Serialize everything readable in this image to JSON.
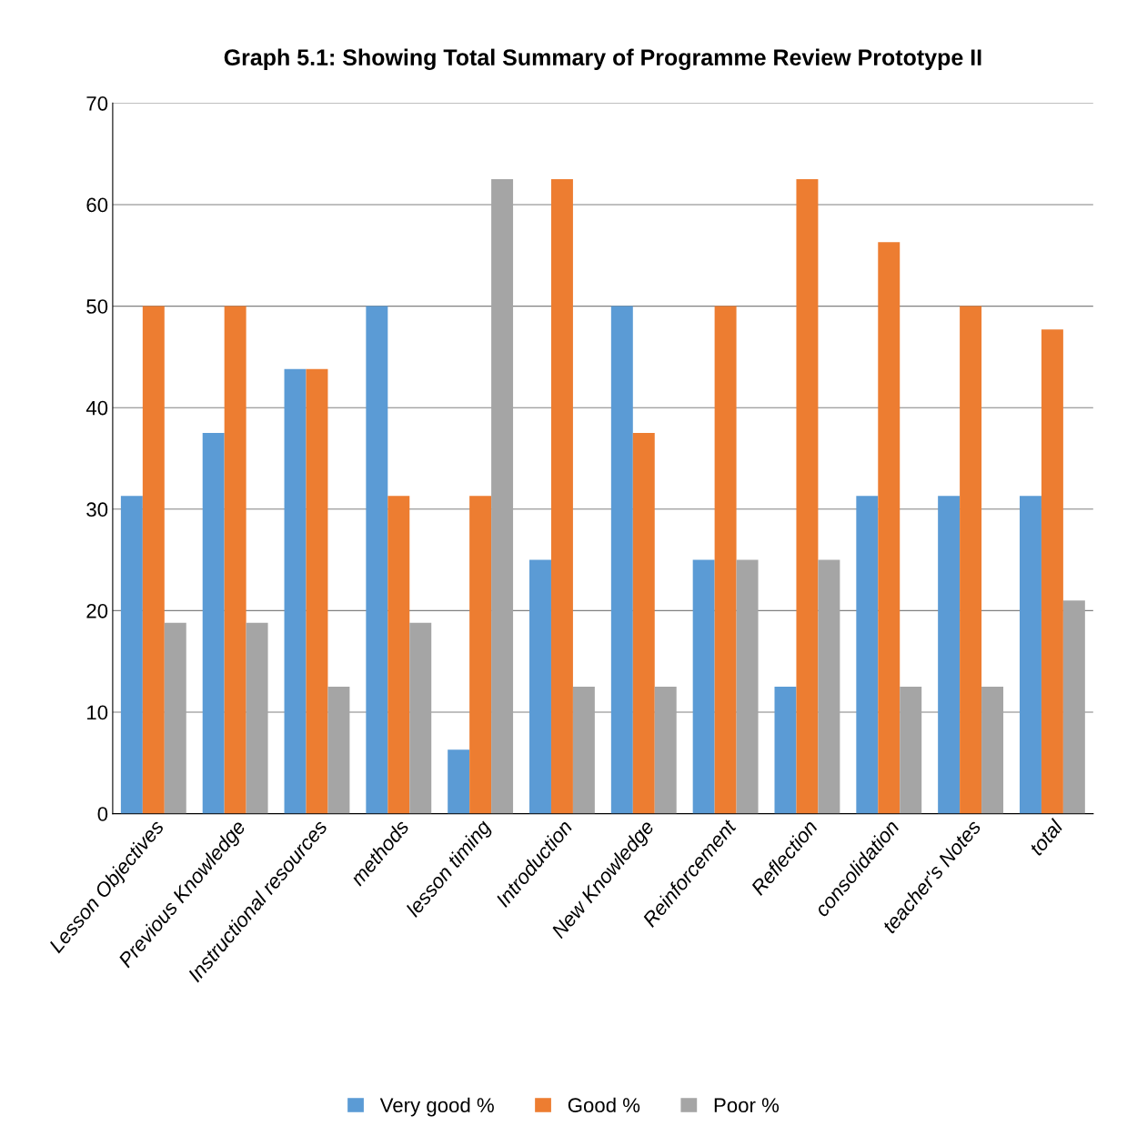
{
  "chart_data": {
    "type": "bar",
    "title": "Graph 5.1: Showing Total Summary of Programme Review Prototype II",
    "categories": [
      "Lesson Objectives",
      "Previous Knowledge",
      "Instructional resources",
      "methods",
      "lesson timing",
      "Introduction",
      "New Knowledge",
      "Reinforcement",
      "Reflection",
      "consolidation",
      "teacher's Notes",
      "total"
    ],
    "series": [
      {
        "name": "Very good %",
        "color": "#5b9bd5",
        "values": [
          31.3,
          37.5,
          43.8,
          50,
          6.3,
          25,
          50,
          25,
          12.5,
          31.3,
          31.3,
          31.3
        ]
      },
      {
        "name": "Good %",
        "color": "#ed7d31",
        "values": [
          50,
          50,
          43.8,
          31.3,
          31.3,
          62.5,
          37.5,
          50,
          62.5,
          56.3,
          50,
          47.7
        ]
      },
      {
        "name": "Poor %",
        "color": "#a5a5a5",
        "values": [
          18.8,
          18.8,
          12.5,
          18.8,
          62.5,
          12.5,
          12.5,
          25,
          25,
          12.5,
          12.5,
          21.0
        ]
      }
    ],
    "ylim": [
      0,
      70
    ],
    "yticks": [
      0,
      10,
      20,
      30,
      40,
      50,
      60,
      70
    ],
    "grid": "y",
    "legend": "bottom"
  }
}
